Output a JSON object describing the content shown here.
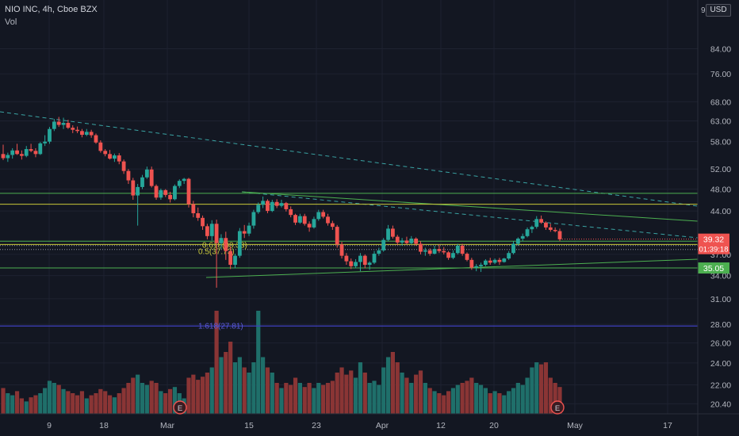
{
  "header": {
    "symbol": "NIO INC, 4h, Cboe BZX",
    "volume_label": "Vol",
    "currency_button": "USD",
    "partial_top_price": "9"
  },
  "colors": {
    "background": "#131722",
    "up": "#26a69a",
    "down": "#ef5350",
    "grid": "#1e2230",
    "axis_text": "#b2b5be",
    "horizontal_green": "#4caf50",
    "horizontal_yellow": "#c8c83a",
    "trendline_dashed": "#3aa3a3",
    "fib_line": "#3f3fbf",
    "price_tag": "#ef5350",
    "support_tag": "#4caf50"
  },
  "chart_data": {
    "type": "candlestick",
    "y_scale": "log",
    "ylim": [
      19.6,
      102
    ],
    "price_axis_ticks": [
      84.0,
      76.0,
      68.0,
      63.0,
      58.0,
      52.0,
      48.0,
      44.0,
      37.0,
      34.0,
      31.0,
      28.0,
      26.0,
      24.0,
      22.0,
      20.4
    ],
    "time_axis_ticks": [
      "9",
      "18",
      "Mar",
      "15",
      "23",
      "Apr",
      "12",
      "20",
      "May",
      "17"
    ],
    "last_price_tag": {
      "value": "39.32",
      "countdown": "01:39:18"
    },
    "support_tag": {
      "value": "35.05"
    },
    "horizontal_levels": [
      {
        "value": 47.2,
        "color": "green"
      },
      {
        "value": 45.2,
        "color": "yellow"
      },
      {
        "value": 39.0,
        "color": "green"
      },
      {
        "value": 38.5,
        "color": "yellow"
      },
      {
        "value": 35.05,
        "color": "green"
      }
    ],
    "fib_levels": [
      {
        "label": "0.618(38.33)",
        "value": 38.33,
        "style": "dotted"
      },
      {
        "label": "0.5(37.73)",
        "value": 37.73,
        "style": "dotted"
      },
      {
        "label": "1.618(27.81)",
        "value": 27.81,
        "style": "solid"
      }
    ],
    "event_markers": [
      "E",
      "E"
    ],
    "candles": [
      [
        55.2,
        57.3,
        53.9,
        54.3,
        0.25
      ],
      [
        54.3,
        55.5,
        53.5,
        55.0,
        0.2
      ],
      [
        55.0,
        56.5,
        54.2,
        56.0,
        0.18
      ],
      [
        56.0,
        57.5,
        55.0,
        55.2,
        0.22
      ],
      [
        55.2,
        56.0,
        54.0,
        54.8,
        0.15
      ],
      [
        54.8,
        57.0,
        54.5,
        56.3,
        0.12
      ],
      [
        56.3,
        57.5,
        55.6,
        55.9,
        0.16
      ],
      [
        55.9,
        56.5,
        54.5,
        55.2,
        0.18
      ],
      [
        55.2,
        57.9,
        55.0,
        57.6,
        0.2
      ],
      [
        57.6,
        59.5,
        57.0,
        58.0,
        0.25
      ],
      [
        58.0,
        61.5,
        57.5,
        61.0,
        0.32
      ],
      [
        61.0,
        63.5,
        60.5,
        62.8,
        0.3
      ],
      [
        62.8,
        64.0,
        61.5,
        62.0,
        0.28
      ],
      [
        62.0,
        63.8,
        61.0,
        62.5,
        0.24
      ],
      [
        62.5,
        63.3,
        61.0,
        61.3,
        0.22
      ],
      [
        61.3,
        61.9,
        60.0,
        60.8,
        0.2
      ],
      [
        60.8,
        61.6,
        60.0,
        60.5,
        0.18
      ],
      [
        60.5,
        61.0,
        59.0,
        59.6,
        0.22
      ],
      [
        59.6,
        61.0,
        59.3,
        60.3,
        0.15
      ],
      [
        60.3,
        60.8,
        58.9,
        59.5,
        0.18
      ],
      [
        59.5,
        59.9,
        57.5,
        57.8,
        0.2
      ],
      [
        57.8,
        58.3,
        55.5,
        55.9,
        0.24
      ],
      [
        55.9,
        56.3,
        54.7,
        55.2,
        0.22
      ],
      [
        55.2,
        56.1,
        54.0,
        54.2,
        0.18
      ],
      [
        54.2,
        55.3,
        53.5,
        54.9,
        0.16
      ],
      [
        54.9,
        55.4,
        53.0,
        53.6,
        0.2
      ],
      [
        53.6,
        54.0,
        51.0,
        51.6,
        0.25
      ],
      [
        51.6,
        52.0,
        49.0,
        49.7,
        0.3
      ],
      [
        49.7,
        50.2,
        46.0,
        46.8,
        0.35
      ],
      [
        46.8,
        49.0,
        41.5,
        48.4,
        0.38
      ],
      [
        48.4,
        50.8,
        48.0,
        50.3,
        0.3
      ],
      [
        50.3,
        52.5,
        50.0,
        51.9,
        0.28
      ],
      [
        51.9,
        52.5,
        48.3,
        48.6,
        0.32
      ],
      [
        48.6,
        48.9,
        46.0,
        46.4,
        0.3
      ],
      [
        46.4,
        48.1,
        46.0,
        47.8,
        0.22
      ],
      [
        47.8,
        48.0,
        46.5,
        46.9,
        0.2
      ],
      [
        46.9,
        47.5,
        45.5,
        46.1,
        0.24
      ],
      [
        46.1,
        48.9,
        45.9,
        48.6,
        0.26
      ],
      [
        48.6,
        49.9,
        48.2,
        49.6,
        0.2
      ],
      [
        49.6,
        50.2,
        49.0,
        50.0,
        0.15
      ],
      [
        50.0,
        50.2,
        44.6,
        45.2,
        0.35
      ],
      [
        45.2,
        45.8,
        42.9,
        43.6,
        0.38
      ],
      [
        43.6,
        44.6,
        42.3,
        42.8,
        0.33
      ],
      [
        42.8,
        43.2,
        40.8,
        41.4,
        0.36
      ],
      [
        41.4,
        41.8,
        39.3,
        39.8,
        0.4
      ],
      [
        39.8,
        42.4,
        39.1,
        41.8,
        0.45
      ],
      [
        41.8,
        42.5,
        32.4,
        38.7,
        1.0
      ],
      [
        38.7,
        40.1,
        37.8,
        39.5,
        0.55
      ],
      [
        39.5,
        40.5,
        36.2,
        37.5,
        0.6
      ],
      [
        37.5,
        38.2,
        34.9,
        35.5,
        0.7
      ],
      [
        35.5,
        37.1,
        35.0,
        36.8,
        0.5
      ],
      [
        36.8,
        41.1,
        36.5,
        40.6,
        0.55
      ],
      [
        40.6,
        41.6,
        39.5,
        40.2,
        0.45
      ],
      [
        40.2,
        42.0,
        39.8,
        41.5,
        0.4
      ],
      [
        41.5,
        44.2,
        41.0,
        43.8,
        0.5
      ],
      [
        43.8,
        45.5,
        43.5,
        45.1,
        1.0
      ],
      [
        45.1,
        46.6,
        44.5,
        45.8,
        0.55
      ],
      [
        45.8,
        46.1,
        43.6,
        44.0,
        0.45
      ],
      [
        44.0,
        46.0,
        43.8,
        45.6,
        0.4
      ],
      [
        45.6,
        46.1,
        44.5,
        44.9,
        0.3
      ],
      [
        44.9,
        46.0,
        44.6,
        45.4,
        0.25
      ],
      [
        45.4,
        45.6,
        43.9,
        44.3,
        0.3
      ],
      [
        44.3,
        44.8,
        42.9,
        43.3,
        0.28
      ],
      [
        43.3,
        43.5,
        41.6,
        42.0,
        0.35
      ],
      [
        42.0,
        43.5,
        41.8,
        43.1,
        0.3
      ],
      [
        43.1,
        43.5,
        41.5,
        41.8,
        0.26
      ],
      [
        41.8,
        42.2,
        40.5,
        41.2,
        0.3
      ],
      [
        41.2,
        43.0,
        41.0,
        42.6,
        0.25
      ],
      [
        42.6,
        44.2,
        42.3,
        43.8,
        0.3
      ],
      [
        43.8,
        44.2,
        42.7,
        43.0,
        0.28
      ],
      [
        43.0,
        43.5,
        41.5,
        41.9,
        0.3
      ],
      [
        41.9,
        42.3,
        40.8,
        41.3,
        0.32
      ],
      [
        41.3,
        41.6,
        38.0,
        38.5,
        0.4
      ],
      [
        38.5,
        38.9,
        36.4,
        36.8,
        0.45
      ],
      [
        36.8,
        37.2,
        35.5,
        36.0,
        0.38
      ],
      [
        36.0,
        36.4,
        34.9,
        35.3,
        0.42
      ],
      [
        35.3,
        36.3,
        35.0,
        35.9,
        0.35
      ],
      [
        35.9,
        37.2,
        34.6,
        36.8,
        0.5
      ],
      [
        36.8,
        37.0,
        35.0,
        35.5,
        0.4
      ],
      [
        35.5,
        36.0,
        34.8,
        35.8,
        0.3
      ],
      [
        35.8,
        37.5,
        35.6,
        37.1,
        0.32
      ],
      [
        37.1,
        38.0,
        36.8,
        37.6,
        0.28
      ],
      [
        37.6,
        39.5,
        37.4,
        39.2,
        0.45
      ],
      [
        39.2,
        41.6,
        39.0,
        41.0,
        0.55
      ],
      [
        41.0,
        41.5,
        39.4,
        39.7,
        0.6
      ],
      [
        39.7,
        40.0,
        38.4,
        38.8,
        0.5
      ],
      [
        38.8,
        39.5,
        38.3,
        39.1,
        0.4
      ],
      [
        39.1,
        39.7,
        38.5,
        38.7,
        0.35
      ],
      [
        38.7,
        39.8,
        38.5,
        39.4,
        0.3
      ],
      [
        39.4,
        39.6,
        38.3,
        38.6,
        0.38
      ],
      [
        38.6,
        39.0,
        37.0,
        37.4,
        0.42
      ],
      [
        37.4,
        38.0,
        36.8,
        37.6,
        0.3
      ],
      [
        37.6,
        37.9,
        36.8,
        37.1,
        0.25
      ],
      [
        37.1,
        38.3,
        37.0,
        37.8,
        0.22
      ],
      [
        37.8,
        38.5,
        37.2,
        37.5,
        0.2
      ],
      [
        37.5,
        38.1,
        37.0,
        37.3,
        0.18
      ],
      [
        37.3,
        37.5,
        36.2,
        36.5,
        0.22
      ],
      [
        36.5,
        37.6,
        36.3,
        37.2,
        0.25
      ],
      [
        37.2,
        38.6,
        37.0,
        38.3,
        0.28
      ],
      [
        38.3,
        38.6,
        36.8,
        37.1,
        0.3
      ],
      [
        37.1,
        37.3,
        36.0,
        36.2,
        0.32
      ],
      [
        36.2,
        36.5,
        34.8,
        35.1,
        0.35
      ],
      [
        35.1,
        35.6,
        34.6,
        35.3,
        0.3
      ],
      [
        35.3,
        35.8,
        34.5,
        35.5,
        0.28
      ],
      [
        35.5,
        36.3,
        35.3,
        36.1,
        0.25
      ],
      [
        36.1,
        36.5,
        35.5,
        35.8,
        0.2
      ],
      [
        35.8,
        36.4,
        35.6,
        36.2,
        0.22
      ],
      [
        36.2,
        36.5,
        35.5,
        35.9,
        0.2
      ],
      [
        35.9,
        36.5,
        35.8,
        36.4,
        0.18
      ],
      [
        36.4,
        37.5,
        36.2,
        37.2,
        0.22
      ],
      [
        37.2,
        39.0,
        37.0,
        38.6,
        0.25
      ],
      [
        38.6,
        39.6,
        38.3,
        39.4,
        0.3
      ],
      [
        39.4,
        40.2,
        39.0,
        39.8,
        0.28
      ],
      [
        39.8,
        41.2,
        39.6,
        40.9,
        0.35
      ],
      [
        40.9,
        41.5,
        40.3,
        41.3,
        0.45
      ],
      [
        41.3,
        43.1,
        41.0,
        42.6,
        0.5
      ],
      [
        42.6,
        43.2,
        41.8,
        42.0,
        0.48
      ],
      [
        42.0,
        42.2,
        40.8,
        41.2,
        0.5
      ],
      [
        41.2,
        41.8,
        40.5,
        40.8,
        0.35
      ],
      [
        40.8,
        41.2,
        40.4,
        40.6,
        0.3
      ],
      [
        40.6,
        41.0,
        39.0,
        39.3,
        0.26
      ]
    ]
  }
}
